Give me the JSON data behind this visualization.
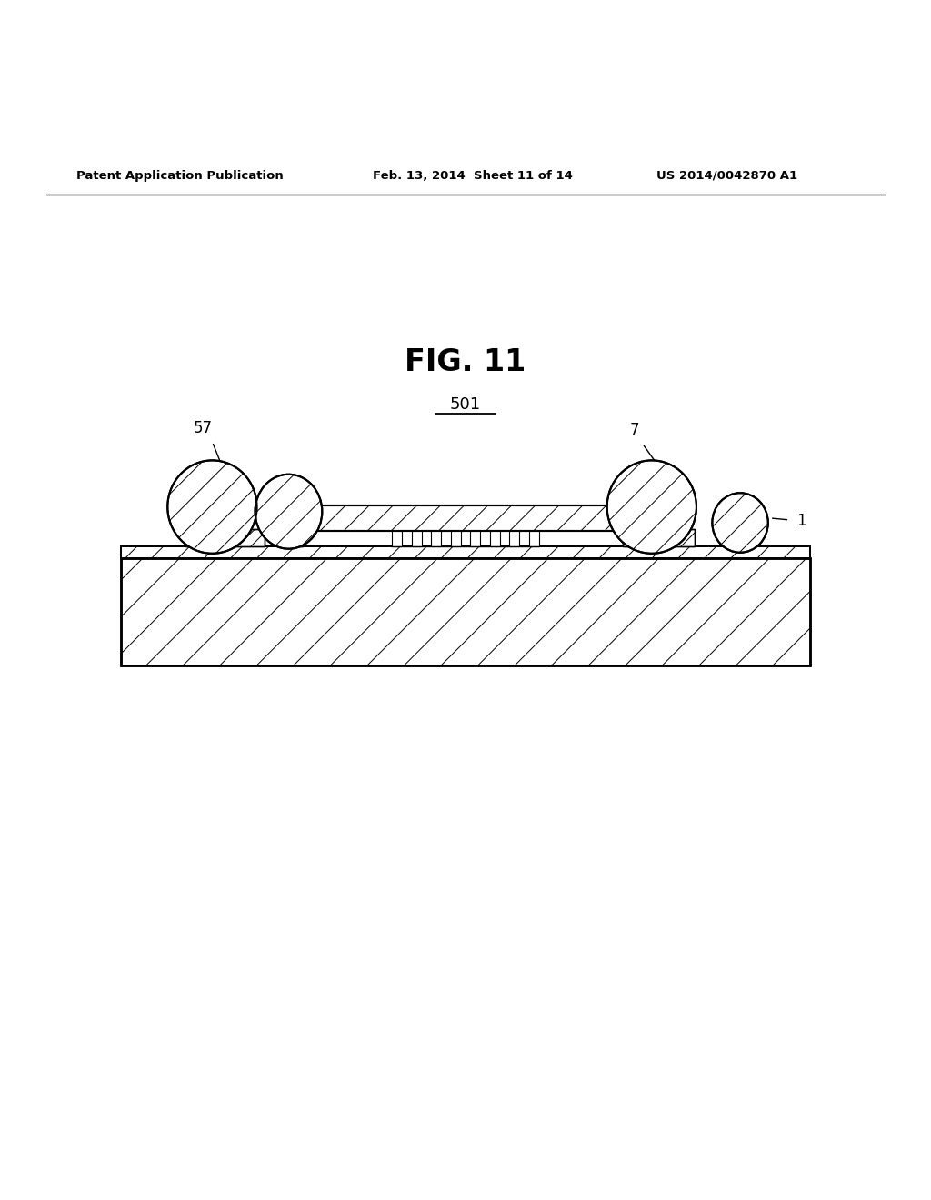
{
  "bg_color": "#ffffff",
  "line_color": "#000000",
  "title_text": "FIG. 11",
  "label_501": "501",
  "label_57": "57",
  "label_7": "7",
  "label_1": "1",
  "header_left": "Patent Application Publication",
  "header_mid": "Feb. 13, 2014  Sheet 11 of 14",
  "header_right": "US 2014/0042870 A1"
}
